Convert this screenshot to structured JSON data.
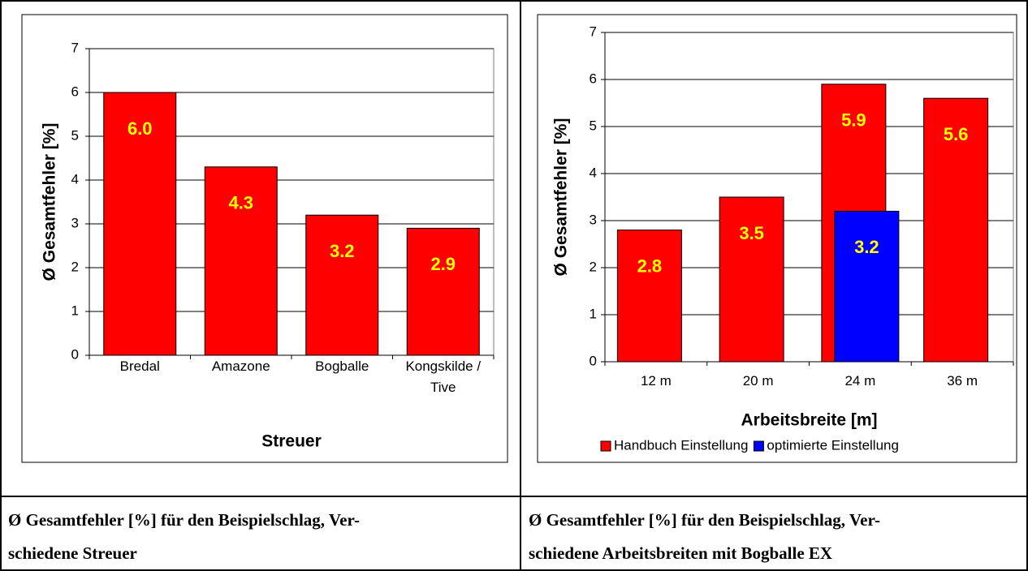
{
  "chart_data": [
    {
      "type": "bar",
      "y_label": "Ø Gesamtfehler [%]",
      "x_label": "Streuer",
      "categories": [
        "Bredal",
        "Amazone",
        "Bogballe",
        "Kongskilde / Tive"
      ],
      "values": [
        6.0,
        4.3,
        3.2,
        2.9
      ],
      "value_labels": [
        "6.0",
        "4.3",
        "3.2",
        "2.9"
      ],
      "color": "#ff0000",
      "label_color": "#ffff00",
      "ylim": [
        0,
        7
      ],
      "yticks": [
        0,
        1,
        2,
        3,
        4,
        5,
        6,
        7
      ],
      "grid": true
    },
    {
      "type": "bar",
      "y_label": "Ø Gesamtfehler [%]",
      "x_label": "Arbeitsbreite [m]",
      "categories": [
        "12 m",
        "20 m",
        "24 m",
        "36 m"
      ],
      "series": [
        {
          "name": "Handbuch Einstellung",
          "color": "#ff0000",
          "values": [
            2.8,
            3.5,
            5.9,
            5.6
          ],
          "value_labels": [
            "2.8",
            "3.5",
            "5.9",
            "5.6"
          ]
        },
        {
          "name": "optimierte Einstellung",
          "color": "#0000ff",
          "values": [
            null,
            null,
            3.2,
            null
          ],
          "value_labels": [
            null,
            null,
            "3.2",
            null
          ]
        }
      ],
      "label_color": "#ffff00",
      "ylim": [
        0,
        7
      ],
      "yticks": [
        0,
        1,
        2,
        3,
        4,
        5,
        6,
        7
      ],
      "grid": true,
      "legend": "bottom"
    }
  ],
  "captions": [
    [
      "Ø Gesamtfehler [%] für den Beispielschlag, Ver-",
      "schiedene Streuer"
    ],
    [
      "Ø Gesamtfehler [%] für den Beispielschlag, Ver-",
      "schiedene Arbeitsbreiten mit Bogballe EX"
    ]
  ]
}
